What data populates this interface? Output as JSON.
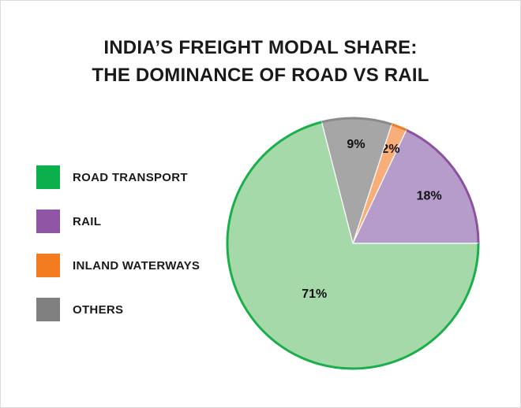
{
  "chart_data": {
    "type": "pie",
    "title_lines": [
      "INDIA’S FREIGHT MODAL SHARE:",
      "THE DOMINANCE OF ROAD VS RAIL"
    ],
    "legend_position": "left",
    "slices": [
      {
        "name": "ROAD TRANSPORT",
        "value": 71,
        "label": "71%",
        "legend_color": "#0bb04c",
        "fill": "#a6d9a9",
        "stroke": "#1aaf4b"
      },
      {
        "name": "RAIL",
        "value": 18,
        "label": "18%",
        "legend_color": "#9155a6",
        "fill": "#b69ccb",
        "stroke": "#8e50a0"
      },
      {
        "name": "INLAND WATERWAYS",
        "value": 2,
        "label": "2%",
        "legend_color": "#f47c20",
        "fill": "#f9ad78",
        "stroke": "#f47c20"
      },
      {
        "name": "OTHERS",
        "value": 9,
        "label": "9%",
        "legend_color": "#808080",
        "fill": "#a6a6a6",
        "stroke": "#8a8a8a"
      }
    ]
  }
}
